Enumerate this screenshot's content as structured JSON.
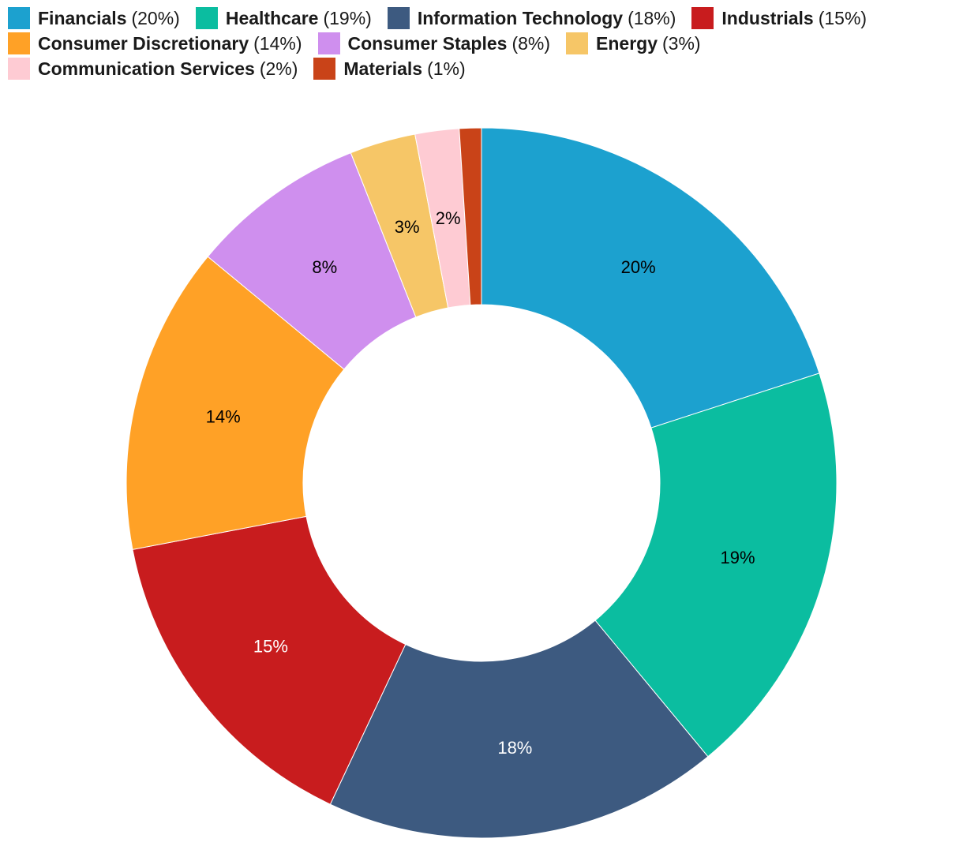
{
  "chart_data": {
    "type": "pie",
    "donut": true,
    "title": "",
    "legend_position": "top",
    "categories": [
      "Financials",
      "Healthcare",
      "Information Technology",
      "Industrials",
      "Consumer Discretionary",
      "Consumer Staples",
      "Energy",
      "Communication Services",
      "Materials"
    ],
    "values": [
      20,
      19,
      18,
      15,
      14,
      8,
      3,
      2,
      1
    ],
    "legend_labels": [
      "(20%)",
      "(19%)",
      "(18%)",
      "(15%)",
      "(14%)",
      "(8%)",
      "(3%)",
      "(2%)",
      "(1%)"
    ],
    "slice_labels": [
      "20%",
      "19%",
      "18%",
      "15%",
      "14%",
      "8%",
      "3%",
      "2%",
      ""
    ],
    "colors": [
      "#1ca1cf",
      "#0bbda0",
      "#3d5a80",
      "#c81c1e",
      "#ffa126",
      "#cf8fee",
      "#f6c667",
      "#fecbd3",
      "#c94318"
    ],
    "label_colors": [
      "#000000",
      "#000000",
      "#ffffff",
      "#ffffff",
      "#000000",
      "#000000",
      "#000000",
      "#000000",
      "#000000"
    ]
  }
}
